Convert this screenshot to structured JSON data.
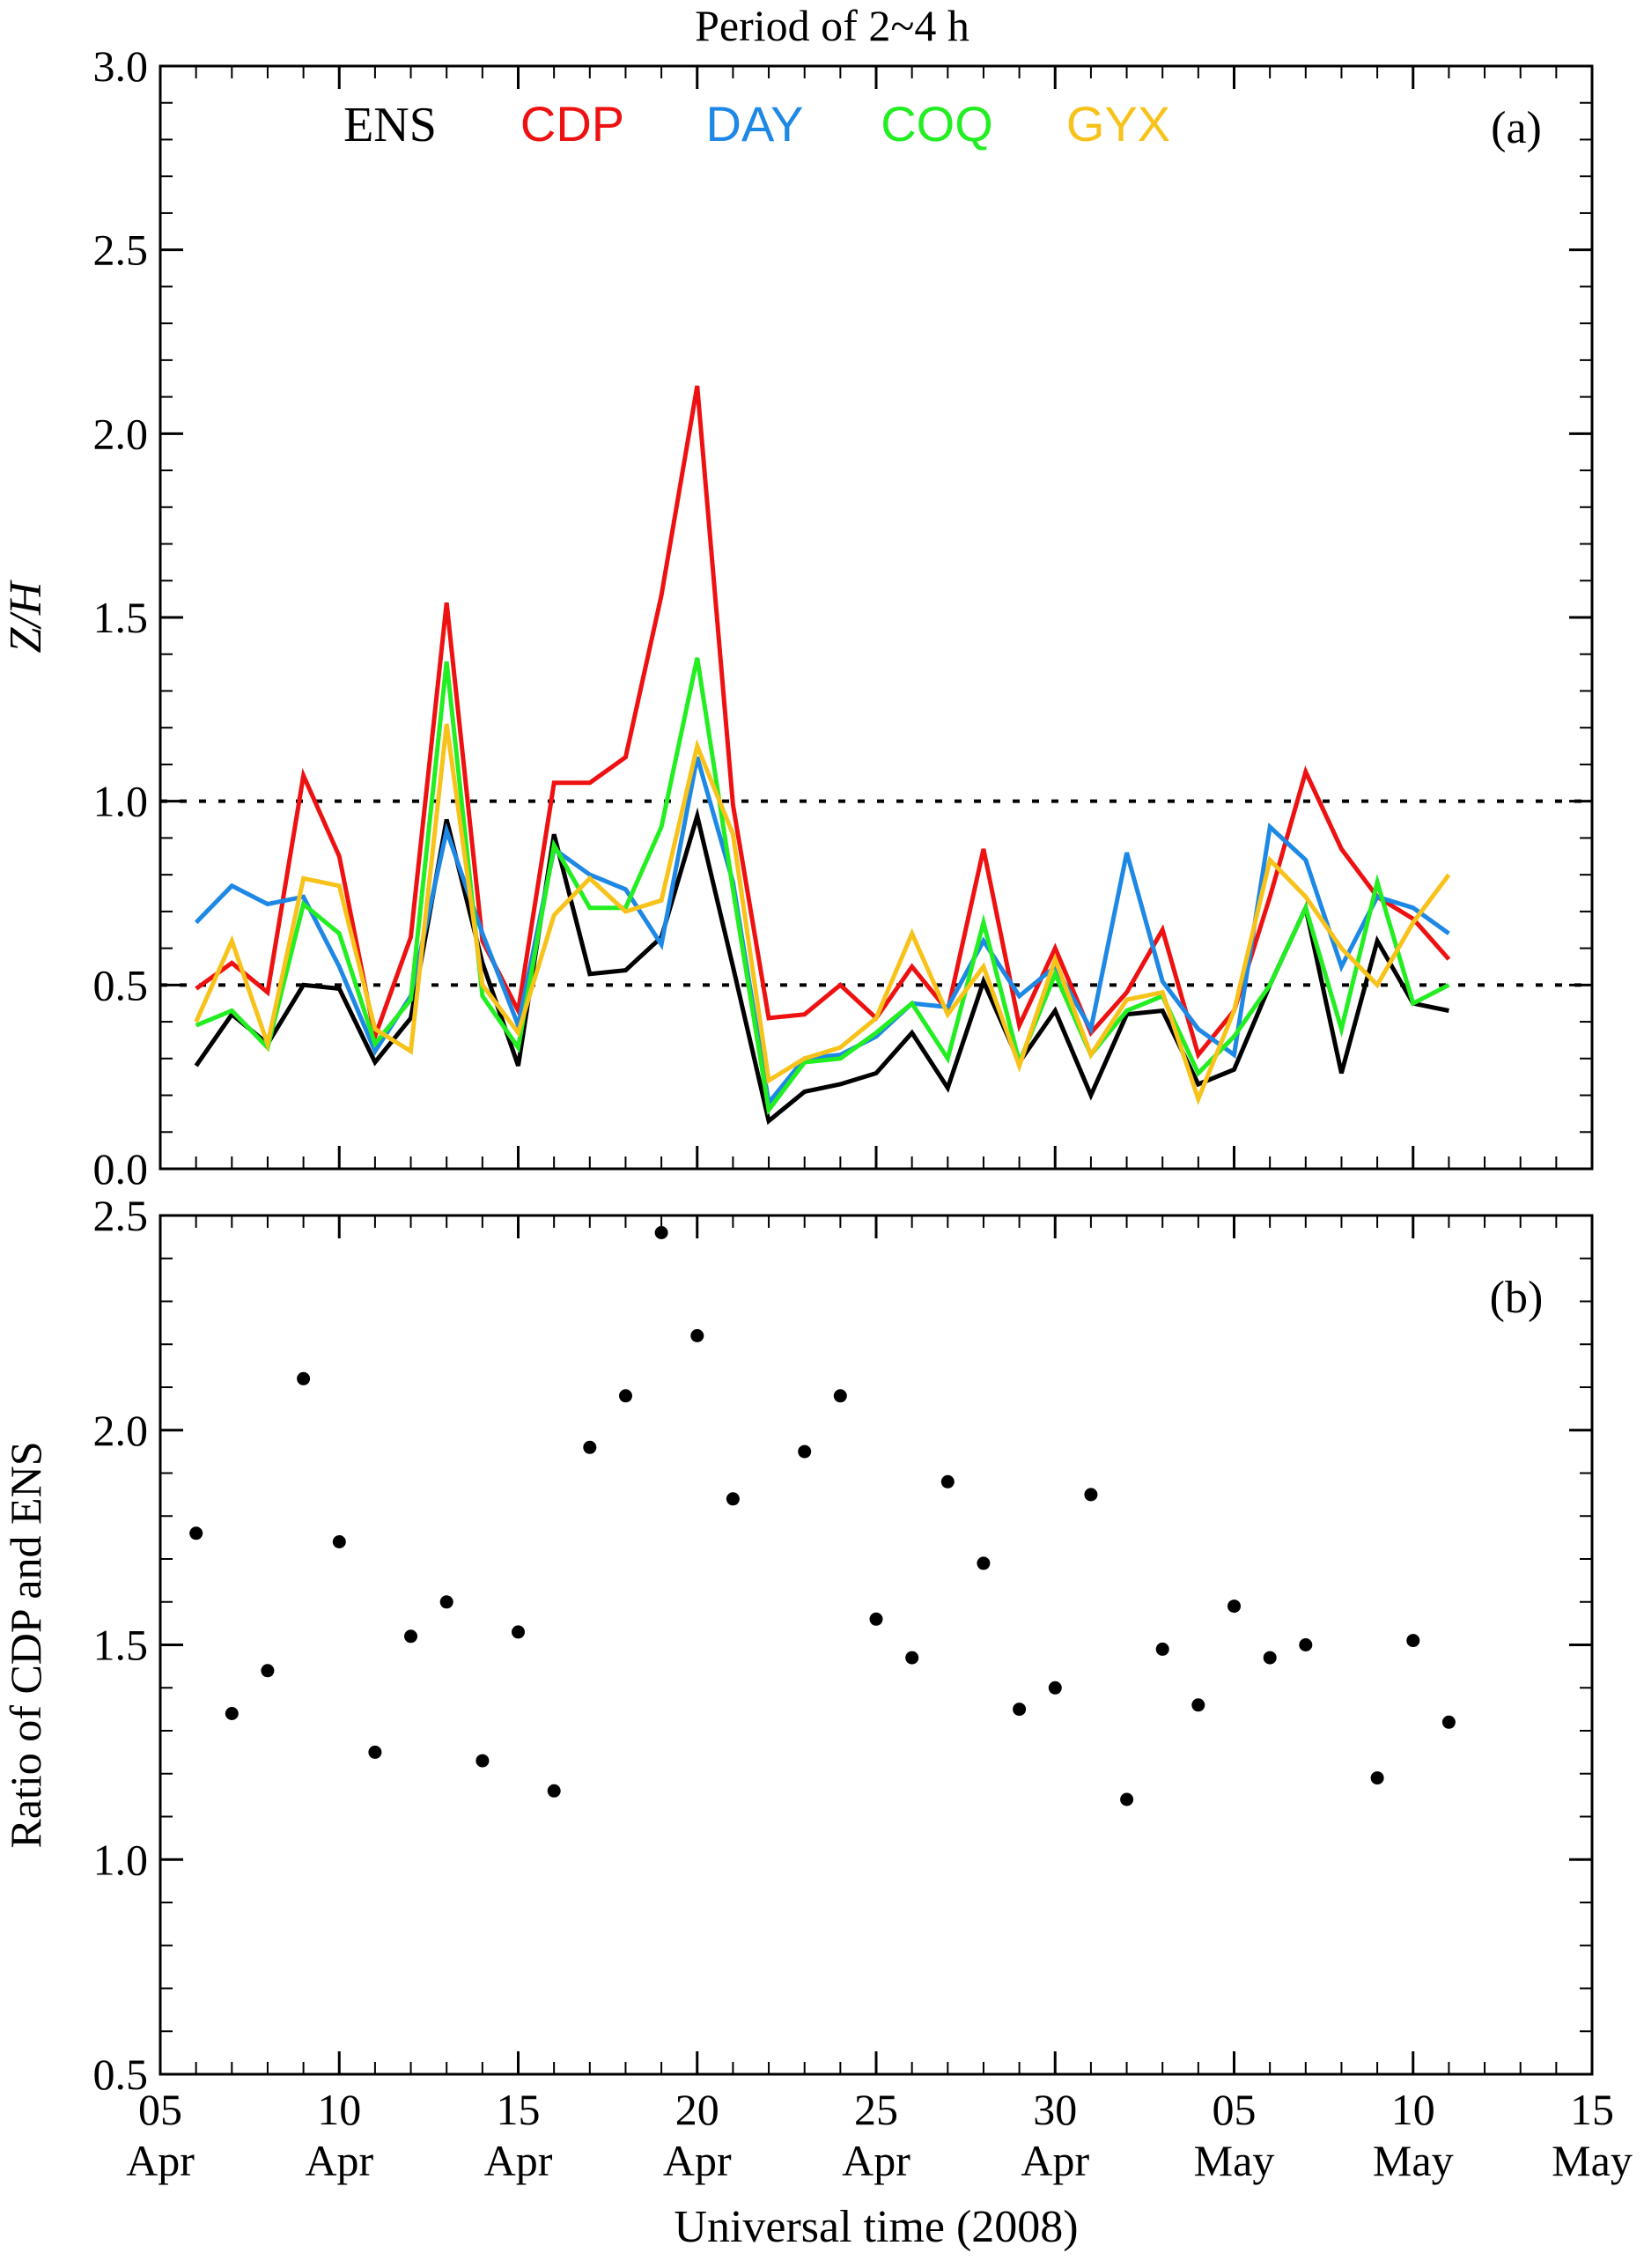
{
  "figure": {
    "title": "Period of 2~4 h",
    "x_axis_label": "Universal time (2008)",
    "x_ticks": [
      {
        "day": 0,
        "top": "05",
        "bottom": "Apr"
      },
      {
        "day": 5,
        "top": "10",
        "bottom": "Apr"
      },
      {
        "day": 10,
        "top": "15",
        "bottom": "Apr"
      },
      {
        "day": 15,
        "top": "20",
        "bottom": "Apr"
      },
      {
        "day": 20,
        "top": "25",
        "bottom": "Apr"
      },
      {
        "day": 25,
        "top": "30",
        "bottom": "Apr"
      },
      {
        "day": 30,
        "top": "05",
        "bottom": "May"
      },
      {
        "day": 35,
        "top": "10",
        "bottom": "May"
      },
      {
        "day": 40,
        "top": "15",
        "bottom": "May"
      }
    ],
    "colors": {
      "ENS": "#000000",
      "CDP": "#ee1111",
      "DAY": "#1e88e5",
      "COQ": "#22ee22",
      "GYX": "#f7c21a"
    }
  },
  "chart_data": [
    {
      "type": "line",
      "panel_label": "(a)",
      "ylabel": "Z/H",
      "ylim": [
        0.0,
        3.0
      ],
      "yticks": [
        "0.0",
        "0.5",
        "1.0",
        "1.5",
        "2.0",
        "2.5",
        "3.0"
      ],
      "xlim": [
        "2008-04-05",
        "2008-05-15"
      ],
      "reference_lines": [
        0.5,
        1.0
      ],
      "x": [
        "2008-04-06",
        "2008-04-07",
        "2008-04-08",
        "2008-04-09",
        "2008-04-10",
        "2008-04-11",
        "2008-04-12",
        "2008-04-13",
        "2008-04-14",
        "2008-04-15",
        "2008-04-16",
        "2008-04-17",
        "2008-04-18",
        "2008-04-19",
        "2008-04-20",
        "2008-04-21",
        "2008-04-22",
        "2008-04-23",
        "2008-04-24",
        "2008-04-25",
        "2008-04-26",
        "2008-04-27",
        "2008-04-28",
        "2008-04-29",
        "2008-04-30",
        "2008-05-01",
        "2008-05-02",
        "2008-05-03",
        "2008-05-04",
        "2008-05-05",
        "2008-05-06",
        "2008-05-07",
        "2008-05-08",
        "2008-05-09",
        "2008-05-10",
        "2008-05-11"
      ],
      "series": [
        {
          "name": "ENS",
          "values": [
            0.28,
            0.42,
            0.34,
            0.5,
            0.49,
            0.29,
            0.41,
            0.95,
            0.56,
            0.28,
            0.91,
            0.53,
            0.54,
            0.63,
            0.96,
            0.55,
            0.13,
            0.21,
            0.23,
            0.26,
            0.37,
            0.22,
            0.51,
            0.29,
            0.43,
            0.2,
            0.42,
            0.43,
            0.23,
            0.27,
            0.5,
            0.71,
            0.26,
            0.62,
            0.45,
            0.43
          ]
        },
        {
          "name": "CDP",
          "values": [
            0.49,
            0.56,
            0.48,
            1.07,
            0.85,
            0.36,
            0.63,
            1.54,
            0.62,
            0.43,
            1.05,
            1.05,
            1.12,
            1.56,
            2.13,
            0.99,
            0.41,
            0.42,
            0.5,
            0.41,
            0.55,
            0.43,
            0.87,
            0.39,
            0.6,
            0.37,
            0.48,
            0.65,
            0.31,
            0.43,
            0.74,
            1.08,
            0.87,
            0.74,
            0.68,
            0.57
          ]
        },
        {
          "name": "DAY",
          "values": [
            0.67,
            0.77,
            0.72,
            0.74,
            0.55,
            0.32,
            0.47,
            0.92,
            0.64,
            0.39,
            0.87,
            0.8,
            0.76,
            0.61,
            1.12,
            0.78,
            0.18,
            0.3,
            0.31,
            0.36,
            0.45,
            0.44,
            0.62,
            0.47,
            0.55,
            0.38,
            0.86,
            0.51,
            0.38,
            0.31,
            0.93,
            0.84,
            0.55,
            0.74,
            0.71,
            0.64
          ]
        },
        {
          "name": "COQ",
          "values": [
            0.39,
            0.43,
            0.33,
            0.72,
            0.64,
            0.34,
            0.46,
            1.38,
            0.47,
            0.33,
            0.88,
            0.71,
            0.71,
            0.93,
            1.39,
            0.76,
            0.16,
            0.29,
            0.3,
            0.37,
            0.45,
            0.3,
            0.67,
            0.29,
            0.53,
            0.31,
            0.43,
            0.47,
            0.26,
            0.36,
            0.5,
            0.71,
            0.38,
            0.78,
            0.45,
            0.5
          ]
        },
        {
          "name": "GYX",
          "values": [
            0.4,
            0.62,
            0.34,
            0.79,
            0.77,
            0.38,
            0.32,
            1.21,
            0.5,
            0.37,
            0.69,
            0.79,
            0.7,
            0.73,
            1.15,
            0.91,
            0.24,
            0.3,
            0.33,
            0.41,
            0.64,
            0.42,
            0.55,
            0.28,
            0.57,
            0.31,
            0.46,
            0.48,
            0.19,
            0.43,
            0.84,
            0.74,
            0.6,
            0.5,
            0.67,
            0.8
          ]
        }
      ]
    },
    {
      "type": "scatter",
      "panel_label": "(b)",
      "ylabel": "Ratio of CDP and ENS",
      "ylim": [
        0.5,
        2.5
      ],
      "yticks": [
        "0.5",
        "1.0",
        "1.5",
        "2.0",
        "2.5"
      ],
      "xlim": [
        "2008-04-05",
        "2008-05-15"
      ],
      "x": [
        "2008-04-06",
        "2008-04-07",
        "2008-04-08",
        "2008-04-09",
        "2008-04-10",
        "2008-04-11",
        "2008-04-12",
        "2008-04-13",
        "2008-04-14",
        "2008-04-15",
        "2008-04-16",
        "2008-04-17",
        "2008-04-18",
        "2008-04-19",
        "2008-04-20",
        "2008-04-21",
        "2008-04-23",
        "2008-04-24",
        "2008-04-25",
        "2008-04-26",
        "2008-04-27",
        "2008-04-28",
        "2008-04-29",
        "2008-04-30",
        "2008-05-01",
        "2008-05-02",
        "2008-05-03",
        "2008-05-04",
        "2008-05-05",
        "2008-05-06",
        "2008-05-07",
        "2008-05-09",
        "2008-05-10",
        "2008-05-11"
      ],
      "values": [
        1.76,
        1.34,
        1.44,
        2.12,
        1.74,
        1.25,
        1.52,
        1.6,
        1.23,
        1.53,
        1.16,
        1.96,
        2.08,
        2.46,
        2.22,
        1.84,
        1.95,
        2.08,
        1.56,
        1.47,
        1.88,
        1.69,
        1.35,
        1.4,
        1.85,
        1.14,
        1.49,
        1.36,
        1.59,
        1.47,
        1.5,
        1.19,
        1.51,
        1.32
      ]
    }
  ]
}
